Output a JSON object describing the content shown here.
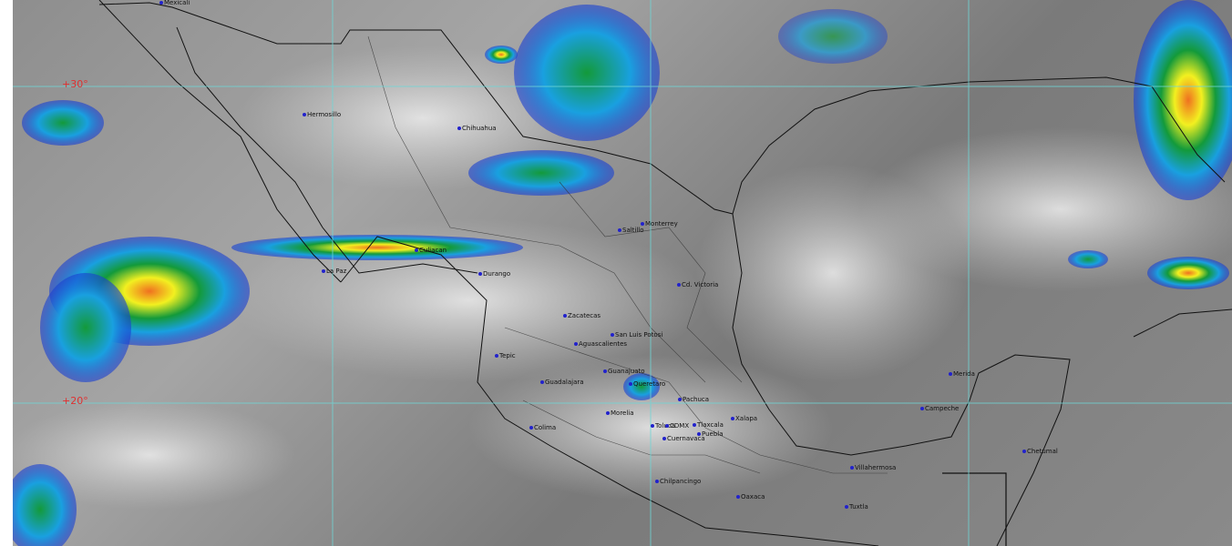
{
  "map": {
    "latitude_labels": [
      "+30°",
      "+20°"
    ],
    "cities": [
      {
        "name": "Mexicali"
      },
      {
        "name": "Hermosillo"
      },
      {
        "name": "Chihuahua"
      },
      {
        "name": "Culiacan"
      },
      {
        "name": "La Paz"
      },
      {
        "name": "Durango"
      },
      {
        "name": "Monterrey"
      },
      {
        "name": "Saltillo"
      },
      {
        "name": "Cd. Victoria"
      },
      {
        "name": "Zacatecas"
      },
      {
        "name": "San Luis Potosi"
      },
      {
        "name": "Aguascalientes"
      },
      {
        "name": "Tepic"
      },
      {
        "name": "Guadalajara"
      },
      {
        "name": "Guanajuato"
      },
      {
        "name": "Queretaro"
      },
      {
        "name": "Pachuca"
      },
      {
        "name": "Morelia"
      },
      {
        "name": "Colima"
      },
      {
        "name": "Toluca"
      },
      {
        "name": "CDMX"
      },
      {
        "name": "Tlaxcala"
      },
      {
        "name": "Puebla"
      },
      {
        "name": "Cuernavaca"
      },
      {
        "name": "Xalapa"
      },
      {
        "name": "Chilpancingo"
      },
      {
        "name": "Oaxaca"
      },
      {
        "name": "Villahermosa"
      },
      {
        "name": "Tuxtla"
      },
      {
        "name": "Merida"
      },
      {
        "name": "Campeche"
      },
      {
        "name": "Chetumal"
      }
    ],
    "colors": {
      "grid": "#6fd6d6",
      "lat_label": "#e03030",
      "cold_cloud_scale": [
        "#1a3fd0",
        "#19a0e0",
        "#139a3a",
        "#f2f020",
        "#f07020"
      ]
    }
  }
}
